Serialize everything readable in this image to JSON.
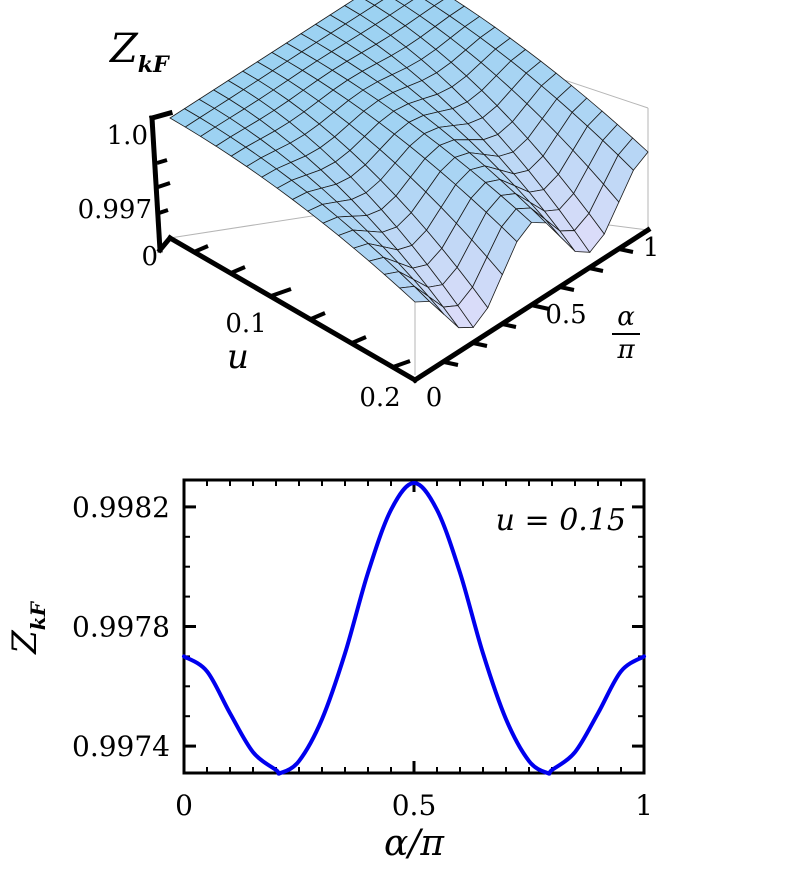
{
  "chart_data": [
    {
      "type": "surface",
      "title": "",
      "zlabel": "Z",
      "zlabel_subscript": "kF",
      "xlabel": "u",
      "ylabel_num": "α",
      "ylabel_den": "π",
      "z_ticks": [
        "1.0",
        "0.997",
        "0"
      ],
      "u_ticks": [
        "0.1",
        "0.2"
      ],
      "alpha_ticks": [
        "0",
        "0.5",
        "1"
      ],
      "u_range": [
        0,
        0.2
      ],
      "alpha_range": [
        0,
        1
      ],
      "description_grid": {
        "u": [
          0,
          0.025,
          0.05,
          0.075,
          0.1,
          0.125,
          0.15,
          0.175,
          0.2
        ],
        "alpha_over_pi": [
          0,
          0.125,
          0.25,
          0.375,
          0.5,
          0.625,
          0.75,
          0.875,
          1
        ]
      },
      "colors": {
        "low": "#c9b8f2",
        "high": "#8ccaf0",
        "mesh": "#1a1a1a"
      }
    },
    {
      "type": "line",
      "title": "",
      "annotation": "u = 0.15",
      "xlabel": "α/π",
      "ylabel": "Z",
      "ylabel_subscript": "kF",
      "x_tick_labels": [
        "0",
        "0.5",
        "1"
      ],
      "y_tick_labels": [
        "0.9982",
        "0.9978",
        "0.9974"
      ],
      "xlim": [
        0,
        1
      ],
      "ylim": [
        0.99731,
        0.99829
      ],
      "series": [
        {
          "color": "#0000ee",
          "x": [
            0,
            0.05,
            0.1,
            0.15,
            0.2,
            0.21,
            0.25,
            0.3,
            0.35,
            0.4,
            0.45,
            0.5,
            0.55,
            0.6,
            0.65,
            0.7,
            0.75,
            0.79,
            0.8,
            0.85,
            0.9,
            0.95,
            1
          ],
          "y": [
            0.9977,
            0.99765,
            0.99751,
            0.99738,
            0.99732,
            0.99731,
            0.99735,
            0.99749,
            0.99771,
            0.99798,
            0.99819,
            0.99828,
            0.99819,
            0.99798,
            0.99771,
            0.99749,
            0.99735,
            0.99731,
            0.99732,
            0.99738,
            0.99751,
            0.99765,
            0.9977
          ]
        }
      ]
    }
  ]
}
